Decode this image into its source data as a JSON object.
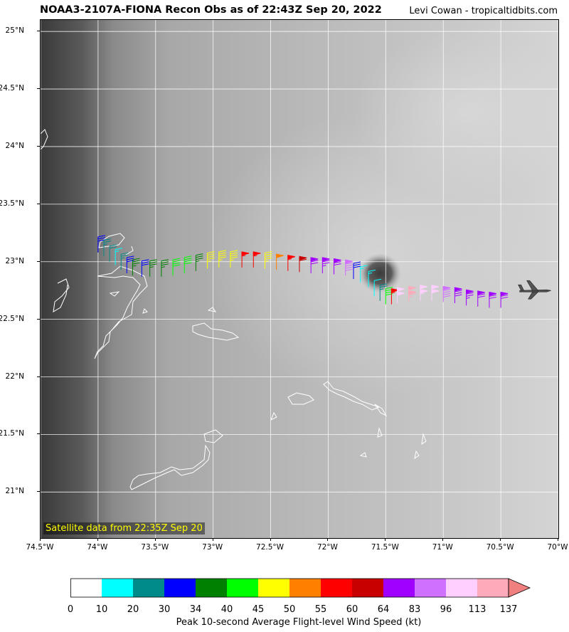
{
  "title": "NOAA3-2107A-FIONA Recon Obs as of 22:43Z Sep 20, 2022",
  "credit": "Levi Cowan - tropicaltidbits.com",
  "satellite_label": "Satellite data from 22:35Z Sep 20",
  "axes": {
    "x_ticks": [
      "74.5°W",
      "74°W",
      "73.5°W",
      "73°W",
      "72.5°W",
      "72°W",
      "71.5°W",
      "71°W",
      "70.5°W",
      "70°W"
    ],
    "y_ticks": [
      "25°N",
      "24.5°N",
      "24°N",
      "23.5°N",
      "23°N",
      "22.5°N",
      "22°N",
      "21.5°N",
      "21°N"
    ],
    "lon_range": [
      -74.5,
      -70.0
    ],
    "lat_range": [
      20.6,
      25.1
    ]
  },
  "colorbar": {
    "title": "Peak 10-second Average Flight-level Wind Speed (kt)",
    "bounds": [
      "0",
      "10",
      "20",
      "30",
      "34",
      "40",
      "45",
      "50",
      "55",
      "60",
      "64",
      "83",
      "96",
      "113",
      "137"
    ],
    "colors": [
      "#ffffff",
      "#00ffff",
      "#008b8b",
      "#0000ff",
      "#008000",
      "#00ff00",
      "#ffff00",
      "#ff7f00",
      "#ff0000",
      "#c80000",
      "#a000ff",
      "#d070ff",
      "#ffd0ff",
      "#ffaabb"
    ],
    "extend_color": "#f08080"
  },
  "storm_center": {
    "lon": -71.55,
    "lat": 22.9
  },
  "aircraft_position": {
    "lon": -70.2,
    "lat": 22.75
  },
  "flight_obs": [
    {
      "lon": -74.0,
      "lat": 23.08,
      "wind_kt": 31
    },
    {
      "lon": -73.95,
      "lat": 23.05,
      "wind_kt": 25
    },
    {
      "lon": -73.9,
      "lat": 23.0,
      "wind_kt": 22
    },
    {
      "lon": -73.85,
      "lat": 22.97,
      "wind_kt": 15
    },
    {
      "lon": -73.8,
      "lat": 22.93,
      "wind_kt": 27
    },
    {
      "lon": -73.75,
      "lat": 22.9,
      "wind_kt": 32
    },
    {
      "lon": -73.7,
      "lat": 22.88,
      "wind_kt": 36
    },
    {
      "lon": -73.62,
      "lat": 22.87,
      "wind_kt": 31
    },
    {
      "lon": -73.55,
      "lat": 22.87,
      "wind_kt": 36
    },
    {
      "lon": -73.45,
      "lat": 22.87,
      "wind_kt": 38
    },
    {
      "lon": -73.35,
      "lat": 22.88,
      "wind_kt": 42
    },
    {
      "lon": -73.25,
      "lat": 22.9,
      "wind_kt": 41
    },
    {
      "lon": -73.15,
      "lat": 22.92,
      "wind_kt": 38
    },
    {
      "lon": -73.05,
      "lat": 22.94,
      "wind_kt": 46
    },
    {
      "lon": -72.95,
      "lat": 22.95,
      "wind_kt": 48
    },
    {
      "lon": -72.85,
      "lat": 22.95,
      "wind_kt": 46
    },
    {
      "lon": -72.75,
      "lat": 22.95,
      "wind_kt": 57
    },
    {
      "lon": -72.65,
      "lat": 22.95,
      "wind_kt": 56
    },
    {
      "lon": -72.55,
      "lat": 22.94,
      "wind_kt": 48
    },
    {
      "lon": -72.45,
      "lat": 22.93,
      "wind_kt": 52
    },
    {
      "lon": -72.35,
      "lat": 22.92,
      "wind_kt": 58
    },
    {
      "lon": -72.25,
      "lat": 22.91,
      "wind_kt": 62
    },
    {
      "lon": -72.15,
      "lat": 22.9,
      "wind_kt": 70
    },
    {
      "lon": -72.05,
      "lat": 22.9,
      "wind_kt": 75
    },
    {
      "lon": -71.95,
      "lat": 22.89,
      "wind_kt": 72
    },
    {
      "lon": -71.85,
      "lat": 22.88,
      "wind_kt": 90
    },
    {
      "lon": -71.78,
      "lat": 22.85,
      "wind_kt": 30
    },
    {
      "lon": -71.72,
      "lat": 22.82,
      "wind_kt": 15
    },
    {
      "lon": -71.65,
      "lat": 22.78,
      "wind_kt": 18
    },
    {
      "lon": -71.6,
      "lat": 22.7,
      "wind_kt": 14
    },
    {
      "lon": -71.55,
      "lat": 22.66,
      "wind_kt": 26
    },
    {
      "lon": -71.5,
      "lat": 22.63,
      "wind_kt": 42
    },
    {
      "lon": -71.45,
      "lat": 22.63,
      "wind_kt": 58
    },
    {
      "lon": -71.4,
      "lat": 22.64,
      "wind_kt": 100
    },
    {
      "lon": -71.3,
      "lat": 22.65,
      "wind_kt": 118
    },
    {
      "lon": -71.2,
      "lat": 22.66,
      "wind_kt": 105
    },
    {
      "lon": -71.1,
      "lat": 22.66,
      "wind_kt": 100
    },
    {
      "lon": -71.0,
      "lat": 22.65,
      "wind_kt": 90
    },
    {
      "lon": -70.9,
      "lat": 22.64,
      "wind_kt": 80
    },
    {
      "lon": -70.8,
      "lat": 22.62,
      "wind_kt": 75
    },
    {
      "lon": -70.7,
      "lat": 22.61,
      "wind_kt": 74
    },
    {
      "lon": -70.6,
      "lat": 22.6,
      "wind_kt": 72
    },
    {
      "lon": -70.5,
      "lat": 22.6,
      "wind_kt": 70
    }
  ]
}
